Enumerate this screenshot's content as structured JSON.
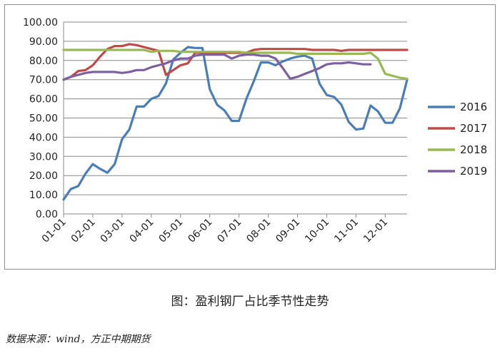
{
  "caption": "图：盈利钢厂占比季节性走势",
  "source": "数据来源：wind，方正中期期货",
  "chart_data": {
    "type": "line",
    "title": "",
    "xlabel": "",
    "ylabel": "",
    "ylim": [
      0,
      100
    ],
    "yticks": [
      "0.00",
      "10.00",
      "20.00",
      "30.00",
      "40.00",
      "50.00",
      "60.00",
      "70.00",
      "80.00",
      "90.00",
      "100.00"
    ],
    "xticks": [
      "01-01",
      "02-01",
      "03-01",
      "04-01",
      "05-01",
      "06-01",
      "07-01",
      "08-01",
      "09-01",
      "10-01",
      "11-01",
      "12-01"
    ],
    "legend_position": "right",
    "grid": "horizontal",
    "series": [
      {
        "name": "2016",
        "color": "#4a7ebb",
        "x": [
          1.0,
          1.25,
          1.5,
          1.75,
          2.0,
          2.25,
          2.5,
          2.75,
          3.0,
          3.25,
          3.5,
          3.75,
          4.0,
          4.25,
          4.5,
          4.75,
          5.0,
          5.25,
          5.5,
          5.75,
          6.0,
          6.25,
          6.5,
          6.75,
          7.0,
          7.25,
          7.5,
          7.75,
          8.0,
          8.25,
          8.5,
          8.75,
          9.0,
          9.25,
          9.5,
          9.75,
          10.0,
          10.25,
          10.5,
          10.75,
          11.0,
          11.25,
          11.5,
          11.75,
          12.0,
          12.25,
          12.5,
          12.75
        ],
        "values": [
          7.5,
          13,
          14.5,
          21,
          26,
          23.5,
          21.5,
          26,
          39,
          44,
          56,
          56,
          60,
          61.5,
          68,
          80.5,
          84,
          87,
          86.5,
          86.5,
          65,
          57,
          54,
          48.5,
          48.5,
          60,
          69,
          79,
          79,
          77.5,
          79.5,
          81,
          82,
          82.5,
          81,
          68,
          62,
          61,
          57,
          48,
          44,
          44.5,
          56.5,
          53.5,
          47.5,
          47.5,
          55,
          70
        ]
      },
      {
        "name": "2017",
        "color": "#be4b48",
        "x": [
          1.0,
          1.25,
          1.5,
          1.75,
          2.0,
          2.25,
          2.5,
          2.75,
          3.0,
          3.25,
          3.5,
          3.75,
          4.0,
          4.25,
          4.5,
          4.75,
          5.0,
          5.25,
          5.5,
          5.75,
          6.0,
          6.25,
          6.5,
          6.75,
          7.0,
          7.25,
          7.5,
          7.75,
          8.0,
          8.25,
          8.5,
          8.75,
          9.0,
          9.25,
          9.5,
          9.75,
          10.0,
          10.25,
          10.5,
          10.75,
          11.0,
          11.25,
          11.5,
          11.75,
          12.0,
          12.25,
          12.5,
          12.75
        ],
        "values": [
          70,
          71.5,
          74.5,
          75,
          77.5,
          82,
          86,
          87.5,
          87.5,
          88.5,
          88,
          87,
          86,
          85,
          72.5,
          75,
          77.5,
          78.5,
          84,
          84,
          84,
          84,
          84,
          84,
          84,
          84,
          85.5,
          86,
          86,
          86,
          86,
          86,
          86,
          86,
          85.5,
          85.5,
          85.5,
          85.5,
          85,
          85.5,
          85.5,
          85.5,
          85.5,
          85.5,
          85.5,
          85.5,
          85.5,
          85.5
        ]
      },
      {
        "name": "2018",
        "color": "#98b954",
        "x": [
          1.0,
          1.25,
          1.5,
          1.75,
          2.0,
          2.25,
          2.5,
          2.75,
          3.0,
          3.25,
          3.5,
          3.75,
          4.0,
          4.25,
          4.5,
          4.75,
          5.0,
          5.25,
          5.5,
          5.75,
          6.0,
          6.25,
          6.5,
          6.75,
          7.0,
          7.25,
          7.5,
          7.75,
          8.0,
          8.25,
          8.5,
          8.75,
          9.0,
          9.25,
          9.5,
          9.75,
          10.0,
          10.25,
          10.5,
          10.75,
          11.0,
          11.25,
          11.5,
          11.75,
          12.0,
          12.25,
          12.5,
          12.75
        ],
        "values": [
          85.5,
          85.5,
          85.5,
          85.5,
          85.5,
          85.5,
          85.5,
          85.5,
          85.5,
          85.5,
          85.5,
          85.5,
          84.5,
          85,
          85,
          85,
          84.5,
          84.5,
          84.5,
          84.5,
          84.5,
          84.5,
          84.5,
          84.5,
          84.5,
          84,
          84,
          84,
          84,
          84,
          84,
          84,
          83.5,
          83.5,
          83.5,
          83.5,
          83.5,
          83.5,
          83.5,
          83.5,
          83.5,
          83.5,
          84,
          81,
          73,
          72,
          71,
          70.5
        ]
      },
      {
        "name": "2019",
        "color": "#7d60a0",
        "x": [
          1.0,
          1.25,
          1.5,
          1.75,
          2.0,
          2.25,
          2.5,
          2.75,
          3.0,
          3.25,
          3.5,
          3.75,
          4.0,
          4.25,
          4.5,
          4.75,
          5.0,
          5.25,
          5.5,
          5.75,
          6.0,
          6.25,
          6.5,
          6.75,
          7.0,
          7.25,
          7.5,
          7.75,
          8.0,
          8.25,
          8.5,
          8.75,
          9.0,
          9.25,
          9.5,
          9.75,
          10.0,
          10.25,
          10.5,
          10.75,
          11.0,
          11.25,
          11.5
        ],
        "values": [
          70,
          71.5,
          72.5,
          73.5,
          74,
          74,
          74,
          74,
          73.5,
          74,
          75,
          75,
          76.5,
          77.5,
          78.5,
          80,
          81,
          81,
          82.5,
          83,
          83,
          83,
          83,
          81,
          82.5,
          83,
          83,
          82.5,
          82.5,
          81,
          76,
          70.5,
          71.5,
          73,
          74.5,
          76,
          78,
          78.5,
          78.5,
          79,
          78.5,
          78,
          78
        ]
      }
    ]
  }
}
